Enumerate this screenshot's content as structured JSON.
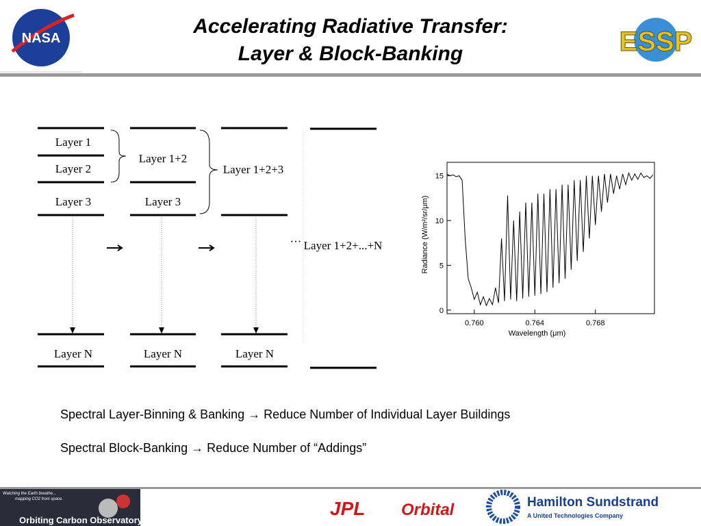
{
  "header": {
    "title": [
      "Accelerating Radiative Transfer:",
      "Layer & Block-Banking"
    ],
    "left_logo": "NASA",
    "right_logo": "ESSP"
  },
  "diagram": {
    "columns": [
      {
        "labels": [
          "Layer 1",
          "Layer 2",
          "Layer 3",
          "Layer N"
        ]
      },
      {
        "labels": [
          "Layer 1+2",
          "Layer 3",
          "Layer N"
        ]
      },
      {
        "labels": [
          "Layer 1+2+3",
          "Layer N"
        ]
      },
      {
        "labels": [
          "···",
          "Layer 1+2+...+N"
        ]
      }
    ]
  },
  "plot": {
    "type": "line",
    "xlabel": "Wavelength (μm)",
    "ylabel": "Radiance (W/m²/sr/μm)",
    "xlim": [
      0.7582,
      0.7719
    ],
    "ylim": [
      -0.4,
      16.5
    ],
    "xticks": [
      {
        "value": 0.76,
        "label": "0.760"
      },
      {
        "value": 0.764,
        "label": "0.764"
      },
      {
        "value": 0.768,
        "label": "0.768"
      }
    ],
    "yticks": [
      0,
      5,
      10,
      15
    ],
    "color": "#000000",
    "x": [
      0.7582,
      0.7584,
      0.7586,
      0.7588,
      0.759,
      0.7592,
      0.7594,
      0.7596,
      0.7598,
      0.76,
      0.7602,
      0.7604,
      0.7606,
      0.7608,
      0.761,
      0.7612,
      0.7614,
      0.7616,
      0.7618,
      0.762,
      0.7622,
      0.7624,
      0.7626,
      0.7628,
      0.763,
      0.7632,
      0.7634,
      0.7636,
      0.7638,
      0.764,
      0.7642,
      0.7644,
      0.7646,
      0.7648,
      0.765,
      0.7652,
      0.7654,
      0.7656,
      0.7658,
      0.766,
      0.7662,
      0.7664,
      0.7666,
      0.7668,
      0.767,
      0.7672,
      0.7674,
      0.7676,
      0.7678,
      0.768,
      0.7682,
      0.7684,
      0.7686,
      0.7688,
      0.769,
      0.7692,
      0.7694,
      0.7696,
      0.7698,
      0.77,
      0.7702,
      0.7704,
      0.7706,
      0.7708,
      0.771,
      0.7712,
      0.7714,
      0.7716,
      0.7718
    ],
    "values": [
      15.2,
      15.0,
      15.1,
      14.9,
      15.0,
      14.5,
      8,
      3.5,
      2.5,
      1.2,
      2.0,
      0.6,
      1.5,
      0.5,
      1.3,
      0.6,
      2.5,
      0.8,
      8,
      1.0,
      12.8,
      1.2,
      10,
      1.0,
      11,
      1.3,
      12,
      1.5,
      12,
      1.6,
      13,
      1.8,
      13,
      2.0,
      13.5,
      2.5,
      13.5,
      3.0,
      14,
      3.5,
      14,
      4.5,
      14.5,
      5.5,
      14.5,
      6.5,
      15,
      8,
      15,
      9.5,
      15,
      11,
      15.2,
      12,
      15.2,
      13,
      15,
      13.5,
      15.2,
      14,
      15.3,
      14.5,
      15.2,
      14.6,
      15.3,
      14.8,
      15,
      14.7,
      15.1
    ]
  },
  "bullets": [
    "Spectral Layer-Binning & Banking  → Reduce Number of Individual Layer Buildings",
    "Spectral Block-Banking → Reduce Number of “Addings”"
  ],
  "footer": {
    "mission": "Orbiting Carbon Observatory",
    "tagline": [
      "Watching the Earth breathe...",
      "mapping CO2 from space."
    ],
    "logos": [
      "JPL",
      "Orbital",
      "Hamilton Sundstrand"
    ],
    "sub": "A United Technologies Company"
  }
}
